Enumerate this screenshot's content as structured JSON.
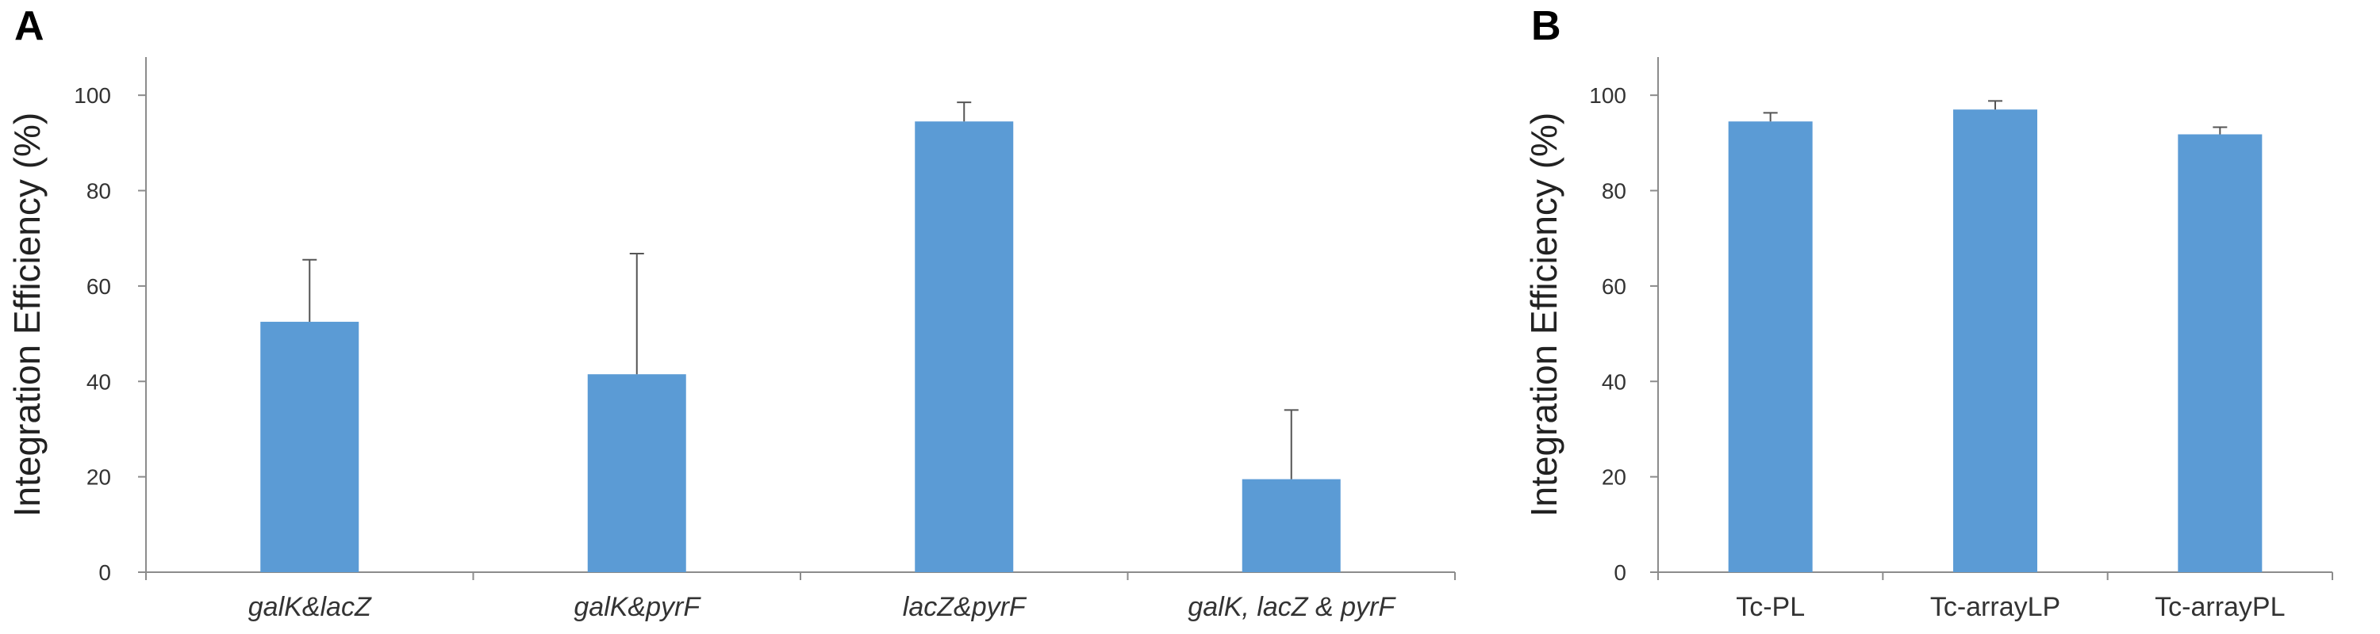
{
  "chart_data": [
    {
      "type": "bar",
      "panel": "A",
      "categories": [
        "galK&lacZ",
        "galK&pyrF",
        "lacZ&pyrF",
        "galK, lacZ & pyrF"
      ],
      "categories_italic": true,
      "values": [
        52.5,
        41.5,
        94.5,
        19.5
      ],
      "errors": [
        13.0,
        25.3,
        4.0,
        14.5
      ],
      "xlabel": "",
      "ylabel": "Integration Efficiency (%)",
      "ylim": [
        0,
        108
      ],
      "yticks": [
        0,
        20,
        40,
        60,
        80,
        100
      ],
      "bar_color": "#5b9bd5",
      "grid": false
    },
    {
      "type": "bar",
      "panel": "B",
      "categories": [
        "Tc-PL",
        "Tc-arrayLP",
        "Tc-arrayPL"
      ],
      "categories_italic": false,
      "values": [
        94.5,
        97.0,
        91.8
      ],
      "errors": [
        1.8,
        1.8,
        1.5
      ],
      "xlabel": "",
      "ylabel": "Integration Efficiency (%)",
      "ylim": [
        0,
        108
      ],
      "yticks": [
        0,
        20,
        40,
        60,
        80,
        100
      ],
      "bar_color": "#5b9bd5",
      "grid": false
    }
  ]
}
